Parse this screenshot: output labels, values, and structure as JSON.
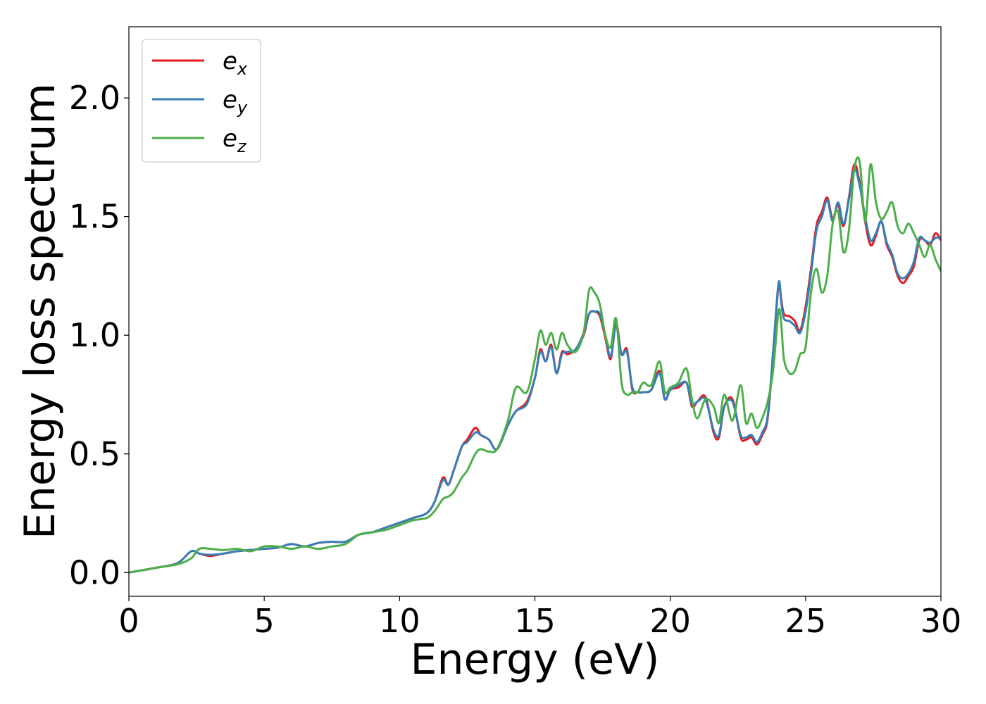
{
  "chart_data": {
    "type": "line",
    "title": "",
    "xlabel": "Energy (eV)",
    "ylabel": "Energy loss spectrum",
    "xlim": [
      0,
      30
    ],
    "ylim": [
      -0.1,
      2.3
    ],
    "xticks": [
      0,
      5,
      10,
      15,
      20,
      25,
      30
    ],
    "xtick_labels": [
      "0",
      "5",
      "10",
      "15",
      "20",
      "25",
      "30"
    ],
    "yticks": [
      0.0,
      0.5,
      1.0,
      1.5,
      2.0
    ],
    "ytick_labels": [
      "0.0",
      "0.5",
      "1.0",
      "1.5",
      "2.0"
    ],
    "grid": false,
    "legend_position": "top-left",
    "series": [
      {
        "key": "ex",
        "name_base": "e",
        "name_sub": "x",
        "color": "#e41a1c",
        "x": [
          0,
          1,
          1.8,
          2.3,
          2.6,
          3.0,
          3.5,
          4.0,
          4.5,
          5.0,
          5.5,
          6.0,
          6.5,
          7.0,
          7.5,
          8.0,
          8.5,
          9.0,
          9.5,
          10.0,
          10.5,
          11.0,
          11.3,
          11.6,
          11.8,
          12.0,
          12.3,
          12.5,
          12.8,
          13.0,
          13.3,
          13.6,
          14.0,
          14.3,
          14.7,
          15.0,
          15.2,
          15.4,
          15.6,
          15.8,
          16.0,
          16.2,
          16.5,
          16.8,
          17.0,
          17.2,
          17.4,
          17.6,
          17.8,
          18.0,
          18.2,
          18.4,
          18.6,
          18.8,
          19.0,
          19.3,
          19.6,
          19.8,
          20.0,
          20.3,
          20.6,
          20.8,
          21.0,
          21.3,
          21.6,
          21.8,
          22.0,
          22.3,
          22.6,
          22.8,
          23.0,
          23.2,
          23.4,
          23.6,
          23.8,
          24.0,
          24.1,
          24.2,
          24.4,
          24.6,
          24.8,
          25.0,
          25.2,
          25.4,
          25.6,
          25.8,
          26.0,
          26.2,
          26.4,
          26.6,
          26.8,
          27.0,
          27.2,
          27.4,
          27.6,
          27.8,
          28.0,
          28.2,
          28.4,
          28.6,
          28.8,
          29.0,
          29.2,
          29.4,
          29.6,
          29.8,
          30.0
        ],
        "y": [
          0,
          0.02,
          0.04,
          0.09,
          0.08,
          0.07,
          0.08,
          0.09,
          0.095,
          0.1,
          0.105,
          0.12,
          0.11,
          0.125,
          0.13,
          0.13,
          0.16,
          0.17,
          0.19,
          0.21,
          0.23,
          0.25,
          0.3,
          0.4,
          0.37,
          0.43,
          0.53,
          0.56,
          0.61,
          0.58,
          0.56,
          0.52,
          0.62,
          0.68,
          0.72,
          0.82,
          0.94,
          0.89,
          0.96,
          0.84,
          0.93,
          0.92,
          0.94,
          1.0,
          1.09,
          1.1,
          1.08,
          0.99,
          0.9,
          1.05,
          0.92,
          0.94,
          0.77,
          0.76,
          0.76,
          0.77,
          0.85,
          0.73,
          0.77,
          0.78,
          0.8,
          0.7,
          0.72,
          0.74,
          0.59,
          0.57,
          0.7,
          0.73,
          0.57,
          0.56,
          0.57,
          0.54,
          0.58,
          0.65,
          0.92,
          1.21,
          1.15,
          1.09,
          1.08,
          1.06,
          1.02,
          1.12,
          1.28,
          1.46,
          1.52,
          1.58,
          1.49,
          1.55,
          1.46,
          1.58,
          1.72,
          1.64,
          1.48,
          1.38,
          1.42,
          1.48,
          1.38,
          1.33,
          1.25,
          1.22,
          1.25,
          1.29,
          1.4,
          1.4,
          1.38,
          1.43,
          1.4
        ]
      },
      {
        "key": "ey",
        "name_base": "e",
        "name_sub": "y",
        "color": "#377eb8",
        "x": [
          0,
          1,
          1.8,
          2.3,
          2.6,
          3.0,
          3.5,
          4.0,
          4.5,
          5.0,
          5.5,
          6.0,
          6.5,
          7.0,
          7.5,
          8.0,
          8.5,
          9.0,
          9.5,
          10.0,
          10.5,
          11.0,
          11.3,
          11.6,
          11.8,
          12.0,
          12.3,
          12.5,
          12.8,
          13.0,
          13.3,
          13.6,
          14.0,
          14.3,
          14.7,
          15.0,
          15.2,
          15.4,
          15.6,
          15.8,
          16.0,
          16.2,
          16.5,
          16.8,
          17.0,
          17.2,
          17.4,
          17.6,
          17.8,
          18.0,
          18.2,
          18.4,
          18.6,
          18.8,
          19.0,
          19.3,
          19.6,
          19.8,
          20.0,
          20.3,
          20.6,
          20.8,
          21.0,
          21.3,
          21.6,
          21.8,
          22.0,
          22.3,
          22.6,
          22.8,
          23.0,
          23.2,
          23.4,
          23.6,
          23.8,
          24.0,
          24.1,
          24.2,
          24.4,
          24.6,
          24.8,
          25.0,
          25.2,
          25.4,
          25.6,
          25.8,
          26.0,
          26.2,
          26.4,
          26.6,
          26.8,
          27.0,
          27.2,
          27.4,
          27.6,
          27.8,
          28.0,
          28.2,
          28.4,
          28.6,
          28.8,
          29.0,
          29.2,
          29.4,
          29.6,
          29.8,
          30.0
        ],
        "y": [
          0,
          0.02,
          0.04,
          0.09,
          0.08,
          0.075,
          0.08,
          0.09,
          0.095,
          0.1,
          0.105,
          0.12,
          0.11,
          0.125,
          0.13,
          0.13,
          0.16,
          0.17,
          0.19,
          0.21,
          0.23,
          0.25,
          0.3,
          0.39,
          0.37,
          0.43,
          0.53,
          0.55,
          0.59,
          0.58,
          0.56,
          0.52,
          0.62,
          0.68,
          0.71,
          0.82,
          0.93,
          0.89,
          0.95,
          0.84,
          0.92,
          0.93,
          0.94,
          1.01,
          1.09,
          1.1,
          1.09,
          1.0,
          0.91,
          1.04,
          0.92,
          0.93,
          0.78,
          0.76,
          0.76,
          0.77,
          0.84,
          0.73,
          0.77,
          0.79,
          0.8,
          0.71,
          0.72,
          0.73,
          0.6,
          0.58,
          0.7,
          0.72,
          0.58,
          0.57,
          0.58,
          0.55,
          0.59,
          0.66,
          0.93,
          1.22,
          1.14,
          1.07,
          1.06,
          1.04,
          1.01,
          1.1,
          1.26,
          1.44,
          1.5,
          1.57,
          1.48,
          1.56,
          1.47,
          1.57,
          1.7,
          1.63,
          1.5,
          1.4,
          1.43,
          1.48,
          1.39,
          1.34,
          1.26,
          1.24,
          1.26,
          1.31,
          1.41,
          1.4,
          1.39,
          1.41,
          1.41
        ]
      },
      {
        "key": "ez",
        "name_base": "e",
        "name_sub": "z",
        "color": "#4daf4a",
        "x": [
          0,
          1,
          1.8,
          2.3,
          2.6,
          3.0,
          3.5,
          4.0,
          4.5,
          5.0,
          5.5,
          6.0,
          6.5,
          7.0,
          7.5,
          8.0,
          8.5,
          9.0,
          9.5,
          10.0,
          10.5,
          11.0,
          11.3,
          11.6,
          11.8,
          12.0,
          12.3,
          12.5,
          12.8,
          13.0,
          13.3,
          13.6,
          14.0,
          14.3,
          14.7,
          15.0,
          15.2,
          15.4,
          15.6,
          15.8,
          16.0,
          16.2,
          16.5,
          16.8,
          17.0,
          17.2,
          17.4,
          17.6,
          17.8,
          18.0,
          18.2,
          18.4,
          18.6,
          18.8,
          19.0,
          19.3,
          19.6,
          19.8,
          20.0,
          20.3,
          20.6,
          20.8,
          21.0,
          21.3,
          21.6,
          21.8,
          22.0,
          22.3,
          22.6,
          22.8,
          23.0,
          23.2,
          23.4,
          23.6,
          23.8,
          24.0,
          24.1,
          24.2,
          24.4,
          24.6,
          24.8,
          25.0,
          25.2,
          25.4,
          25.6,
          25.8,
          26.0,
          26.2,
          26.4,
          26.6,
          26.8,
          27.0,
          27.2,
          27.4,
          27.6,
          27.8,
          28.0,
          28.2,
          28.4,
          28.6,
          28.8,
          29.0,
          29.2,
          29.4,
          29.6,
          29.8,
          30.0
        ],
        "y": [
          0,
          0.02,
          0.035,
          0.06,
          0.1,
          0.1,
          0.095,
          0.1,
          0.09,
          0.11,
          0.11,
          0.1,
          0.11,
          0.1,
          0.11,
          0.12,
          0.16,
          0.17,
          0.18,
          0.2,
          0.22,
          0.23,
          0.26,
          0.31,
          0.32,
          0.34,
          0.4,
          0.43,
          0.5,
          0.52,
          0.51,
          0.52,
          0.64,
          0.78,
          0.76,
          0.9,
          1.02,
          0.96,
          1.01,
          0.94,
          1.01,
          0.96,
          0.93,
          1.01,
          1.19,
          1.18,
          1.13,
          1.0,
          0.95,
          1.07,
          0.8,
          0.75,
          0.76,
          0.76,
          0.8,
          0.79,
          0.89,
          0.76,
          0.78,
          0.8,
          0.86,
          0.73,
          0.65,
          0.73,
          0.7,
          0.63,
          0.75,
          0.64,
          0.79,
          0.63,
          0.67,
          0.61,
          0.65,
          0.72,
          0.85,
          1.1,
          1.05,
          0.9,
          0.84,
          0.85,
          0.92,
          0.95,
          1.18,
          1.28,
          1.18,
          1.25,
          1.47,
          1.52,
          1.35,
          1.44,
          1.7,
          1.73,
          1.48,
          1.72,
          1.56,
          1.49,
          1.52,
          1.56,
          1.46,
          1.43,
          1.47,
          1.43,
          1.38,
          1.33,
          1.38,
          1.32,
          1.27
        ]
      }
    ]
  }
}
